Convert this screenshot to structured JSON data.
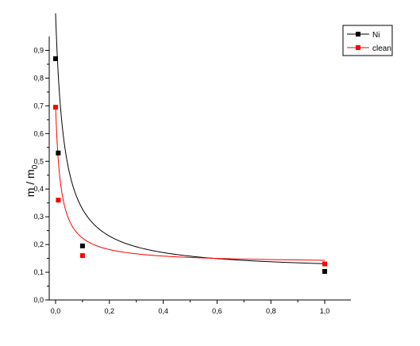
{
  "chart_data": {
    "type": "scatter",
    "title": "",
    "xlabel": "",
    "ylabel": "m / m",
    "ylabel_subscript": "0",
    "xlim": [
      0.0,
      1.0
    ],
    "ylim": [
      0.0,
      0.95
    ],
    "x_ticks": [
      0.0,
      0.2,
      0.4,
      0.6,
      0.8,
      1.0
    ],
    "x_tick_labels": [
      "0,0",
      "0,2",
      "0,4",
      "0,6",
      "0,8",
      "1,0"
    ],
    "y_ticks": [
      0.0,
      0.1,
      0.2,
      0.3,
      0.4,
      0.5,
      0.6,
      0.7,
      0.8,
      0.9
    ],
    "y_tick_labels": [
      "0,0",
      "0,1",
      "0,2",
      "0,3",
      "0,4",
      "0,5",
      "0,6",
      "0,7",
      "0,8",
      "0,9"
    ],
    "grid": false,
    "legend": {
      "placement": "top-right",
      "frame": true
    },
    "series": [
      {
        "name": "Ni",
        "color": "#000000",
        "marker": "square",
        "points": [
          {
            "x": 0.0,
            "y": 0.87
          },
          {
            "x": 0.01,
            "y": 0.53
          },
          {
            "x": 0.1,
            "y": 0.195
          },
          {
            "x": 1.0,
            "y": 0.103
          }
        ],
        "fit": {
          "a": 0.102,
          "b": 0.0298,
          "c": 0.032
        }
      },
      {
        "name": "clean",
        "color": "#ff0000",
        "marker": "square",
        "points": [
          {
            "x": 0.0,
            "y": 0.695
          },
          {
            "x": 0.01,
            "y": 0.36
          },
          {
            "x": 0.1,
            "y": 0.16
          },
          {
            "x": 1.0,
            "y": 0.13
          }
        ],
        "fit": {
          "a": 0.1325,
          "b": 0.0108,
          "c": 0.019
        }
      }
    ]
  }
}
